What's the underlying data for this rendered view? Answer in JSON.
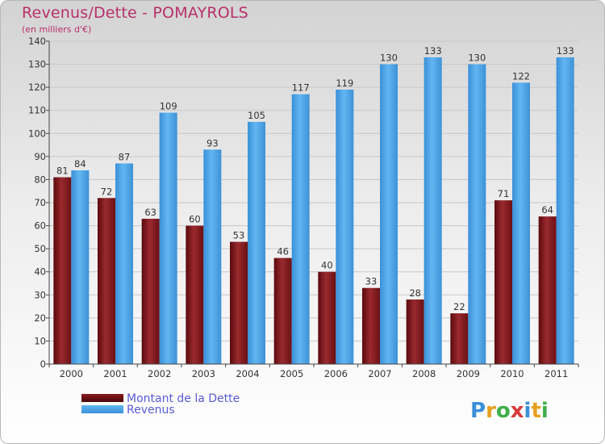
{
  "header": {
    "title": "Revenus/Dette - POMAYROLS",
    "subtitle": "(en milliers d'€)"
  },
  "logo": {
    "text": "Proxiti"
  },
  "colors": {
    "dette": "#7a1418",
    "revenus": "#4aa3e6",
    "title": "#b8306a",
    "legend_text": "#5a5ad8"
  },
  "chart_data": {
    "type": "bar",
    "title": "Revenus/Dette - POMAYROLS",
    "ylabel": "(en milliers d'€)",
    "categories": [
      "2000",
      "2001",
      "2002",
      "2003",
      "2004",
      "2005",
      "2006",
      "2007",
      "2008",
      "2009",
      "2010",
      "2011"
    ],
    "series": [
      {
        "name": "Montant de la Dette",
        "values": [
          81,
          72,
          63,
          60,
          53,
          46,
          40,
          33,
          28,
          22,
          71,
          64
        ]
      },
      {
        "name": "Revenus",
        "values": [
          84,
          87,
          109,
          93,
          105,
          117,
          119,
          130,
          133,
          130,
          122,
          133
        ]
      }
    ],
    "ylim": [
      0,
      140
    ],
    "yticks": [
      0,
      10,
      20,
      30,
      40,
      50,
      60,
      70,
      80,
      90,
      100,
      110,
      120,
      130,
      140
    ],
    "grid": true,
    "legend": "bottom-left"
  }
}
